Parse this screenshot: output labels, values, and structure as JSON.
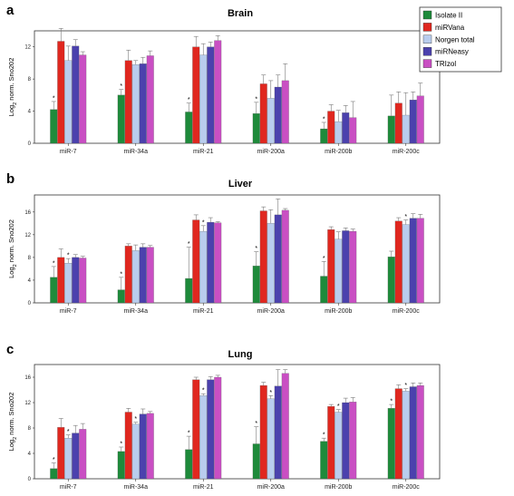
{
  "colors": {
    "Isolate II": "#1e8a3b",
    "miRVana": "#e0271f",
    "Norgen total": "#b9cdee",
    "miRNeasy": "#4b41ad",
    "TRIzol": "#c94fc3"
  },
  "legend": {
    "entries": [
      "Isolate II",
      "miRVana",
      "Norgen total",
      "miRNeasy",
      "TRIzol"
    ]
  },
  "chart_data": [
    {
      "type": "bar",
      "panel": "a",
      "title": "Brain",
      "ylabel_main": "Log",
      "ylabel_sub": "2",
      "ylabel_rest": " norm. Sno202",
      "ylim": [
        0,
        14
      ],
      "yticks": [
        0,
        4,
        8,
        12
      ],
      "categories": [
        "miR-7",
        "miR-34a",
        "miR-21",
        "miR-200a",
        "miR-200b",
        "miR-200c"
      ],
      "series": [
        {
          "name": "Isolate II",
          "values": [
            4.2,
            6.0,
            3.9,
            3.7,
            1.8,
            3.4
          ],
          "errors": [
            1.0,
            0.7,
            1.1,
            1.4,
            0.8,
            2.6
          ]
        },
        {
          "name": "miRVana",
          "values": [
            12.7,
            10.3,
            12.0,
            7.4,
            4.0,
            5.0
          ],
          "errors": [
            1.6,
            1.3,
            1.3,
            1.1,
            0.8,
            1.4
          ]
        },
        {
          "name": "Norgen total",
          "values": [
            10.3,
            9.8,
            11.0,
            5.6,
            2.7,
            3.5
          ],
          "errors": [
            1.8,
            0.5,
            1.4,
            2.2,
            1.4,
            2.8
          ]
        },
        {
          "name": "miRNeasy",
          "values": [
            12.1,
            9.9,
            12.0,
            7.0,
            3.8,
            5.4
          ],
          "errors": [
            0.8,
            0.8,
            0.6,
            1.5,
            0.9,
            1.0
          ]
        },
        {
          "name": "TRIzol",
          "values": [
            11.0,
            10.9,
            12.8,
            7.8,
            3.2,
            5.9
          ],
          "errors": [
            0.4,
            0.6,
            0.6,
            2.1,
            2.0,
            1.6
          ]
        }
      ],
      "significance": [
        [
          0
        ],
        [
          0
        ],
        [
          0
        ],
        [
          0
        ],
        [
          0
        ],
        []
      ]
    },
    {
      "type": "bar",
      "panel": "b",
      "title": "Liver",
      "ylabel_main": "Log",
      "ylabel_sub": "2",
      "ylabel_rest": " norm. Sno202",
      "ylim": [
        0,
        19
      ],
      "yticks": [
        0,
        4,
        8,
        12,
        16
      ],
      "categories": [
        "miR-7",
        "miR-34a",
        "miR-21",
        "miR-200a",
        "miR-200b",
        "miR-200c"
      ],
      "series": [
        {
          "name": "Isolate II",
          "values": [
            4.5,
            2.3,
            4.3,
            6.5,
            4.7,
            8.1
          ],
          "errors": [
            1.9,
            2.2,
            5.5,
            2.5,
            2.6,
            1.0
          ]
        },
        {
          "name": "miRVana",
          "values": [
            8.0,
            10.0,
            14.6,
            16.2,
            12.9,
            14.4
          ],
          "errors": [
            1.5,
            0.4,
            0.9,
            0.7,
            0.5,
            0.6
          ]
        },
        {
          "name": "Norgen total",
          "values": [
            7.0,
            9.2,
            12.6,
            14.0,
            11.2,
            13.8
          ],
          "errors": [
            0.8,
            1.0,
            1.0,
            2.4,
            1.3,
            0.8
          ]
        },
        {
          "name": "miRNeasy",
          "values": [
            8.0,
            9.8,
            14.2,
            15.5,
            12.7,
            14.9
          ],
          "errors": [
            0.5,
            0.6,
            0.8,
            2.8,
            0.5,
            0.8
          ]
        },
        {
          "name": "TRIzol",
          "values": [
            7.9,
            9.8,
            14.1,
            16.3,
            12.6,
            14.9
          ],
          "errors": [
            0.3,
            0.3,
            0.2,
            0.3,
            0.4,
            0.7
          ]
        }
      ],
      "significance": [
        [
          0,
          2
        ],
        [
          0
        ],
        [
          0,
          2
        ],
        [
          0
        ],
        [
          0
        ],
        [
          2
        ]
      ]
    },
    {
      "type": "bar",
      "panel": "c",
      "title": "Lung",
      "ylabel_main": "Log",
      "ylabel_sub": "2",
      "ylabel_rest": " norm. Sno202",
      "ylim": [
        0,
        18
      ],
      "yticks": [
        0,
        4,
        8,
        12,
        16
      ],
      "categories": [
        "miR-7",
        "miR-34a",
        "miR-21",
        "miR-200a",
        "miR-200b",
        "miR-200c"
      ],
      "series": [
        {
          "name": "Isolate II",
          "values": [
            1.6,
            4.3,
            4.6,
            5.5,
            5.9,
            11.1
          ],
          "errors": [
            0.9,
            0.7,
            2.1,
            2.7,
            0.5,
            0.6
          ]
        },
        {
          "name": "miRVana",
          "values": [
            8.1,
            10.5,
            15.6,
            14.7,
            11.4,
            14.2
          ],
          "errors": [
            1.4,
            0.6,
            0.4,
            0.5,
            0.3,
            0.6
          ]
        },
        {
          "name": "Norgen total",
          "values": [
            6.4,
            8.6,
            13.1,
            12.6,
            10.5,
            13.8
          ],
          "errors": [
            0.5,
            0.3,
            0.3,
            0.5,
            0.4,
            0.4
          ]
        },
        {
          "name": "miRNeasy",
          "values": [
            7.2,
            10.2,
            15.6,
            14.6,
            12.0,
            14.5
          ],
          "errors": [
            1.2,
            0.8,
            0.5,
            2.6,
            0.7,
            0.6
          ]
        },
        {
          "name": "TRIzol",
          "values": [
            7.8,
            10.3,
            16.0,
            16.6,
            12.1,
            14.7
          ],
          "errors": [
            0.9,
            0.3,
            0.3,
            0.6,
            0.7,
            0.4
          ]
        }
      ],
      "significance": [
        [
          0,
          2
        ],
        [
          0,
          2
        ],
        [
          0,
          2
        ],
        [
          0,
          2
        ],
        [
          0,
          2
        ],
        [
          0,
          2
        ]
      ]
    }
  ]
}
